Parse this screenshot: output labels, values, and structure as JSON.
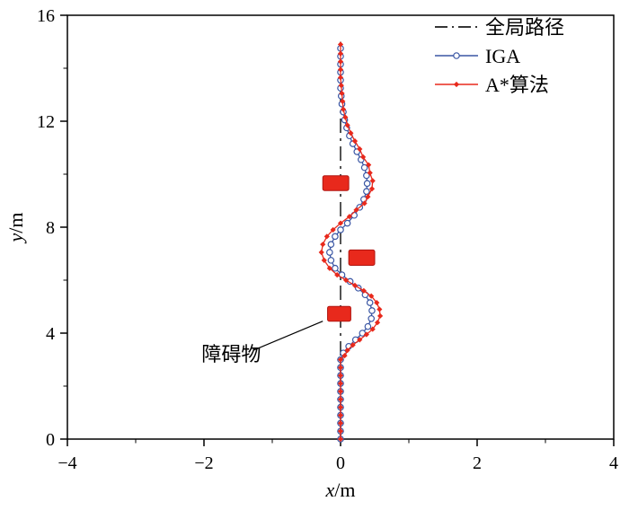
{
  "figure": {
    "background": "#ffffff",
    "frame_color": "#000000"
  },
  "chart_data": {
    "type": "line",
    "title": "",
    "xlabel": "x/m",
    "ylabel": "y/m",
    "xlim": [
      -4,
      4
    ],
    "ylim": [
      0,
      16
    ],
    "grid": false,
    "xticks": {
      "values": [
        -4,
        -2,
        0,
        2,
        4
      ],
      "labels": [
        "−4",
        "−2",
        "0",
        "2",
        "4"
      ]
    },
    "yticks": {
      "values": [
        0,
        4,
        8,
        12,
        16
      ],
      "labels": [
        "0",
        "4",
        "8",
        "12",
        "16"
      ]
    },
    "xminor": [
      -3,
      -1,
      1,
      3
    ],
    "yminor": [
      2,
      6,
      10,
      14
    ],
    "legend": {
      "position": "top-right",
      "items": [
        {
          "label": "全局路径",
          "series": "global"
        },
        {
          "label": "IGA",
          "series": "iga"
        },
        {
          "label": "A*算法",
          "series": "astar"
        }
      ]
    },
    "series": [
      {
        "id": "global",
        "name": "全局路径",
        "style": "dashdot",
        "color": "#1a1a1a",
        "width": 1.5,
        "marker": "none",
        "points": [
          [
            0,
            0
          ],
          [
            0,
            15.0
          ]
        ]
      },
      {
        "id": "iga",
        "name": "IGA",
        "style": "solid",
        "color": "#3a56a4",
        "width": 1.3,
        "marker": "circle",
        "points": [
          [
            0,
            0
          ],
          [
            0,
            0.3
          ],
          [
            0,
            0.6
          ],
          [
            0,
            0.9
          ],
          [
            0,
            1.2
          ],
          [
            0,
            1.5
          ],
          [
            0,
            1.8
          ],
          [
            0,
            2.1
          ],
          [
            0,
            2.4
          ],
          [
            0,
            2.7
          ],
          [
            0,
            3.0
          ],
          [
            0.04,
            3.25
          ],
          [
            0.12,
            3.5
          ],
          [
            0.22,
            3.75
          ],
          [
            0.32,
            4.0
          ],
          [
            0.4,
            4.25
          ],
          [
            0.45,
            4.55
          ],
          [
            0.46,
            4.85
          ],
          [
            0.43,
            5.15
          ],
          [
            0.36,
            5.45
          ],
          [
            0.26,
            5.7
          ],
          [
            0.14,
            5.95
          ],
          [
            0.02,
            6.2
          ],
          [
            -0.08,
            6.45
          ],
          [
            -0.14,
            6.75
          ],
          [
            -0.16,
            7.05
          ],
          [
            -0.14,
            7.35
          ],
          [
            -0.08,
            7.65
          ],
          [
            0.0,
            7.9
          ],
          [
            0.1,
            8.15
          ],
          [
            0.2,
            8.45
          ],
          [
            0.28,
            8.75
          ],
          [
            0.34,
            9.05
          ],
          [
            0.38,
            9.35
          ],
          [
            0.39,
            9.65
          ],
          [
            0.38,
            9.95
          ],
          [
            0.35,
            10.25
          ],
          [
            0.3,
            10.55
          ],
          [
            0.24,
            10.85
          ],
          [
            0.18,
            11.15
          ],
          [
            0.13,
            11.45
          ],
          [
            0.09,
            11.75
          ],
          [
            0.06,
            12.05
          ],
          [
            0.04,
            12.35
          ],
          [
            0.02,
            12.65
          ],
          [
            0.01,
            12.95
          ],
          [
            0,
            13.25
          ],
          [
            0,
            13.55
          ],
          [
            0,
            13.85
          ],
          [
            0,
            14.15
          ],
          [
            0,
            14.45
          ],
          [
            0,
            14.75
          ]
        ]
      },
      {
        "id": "astar",
        "name": "A*算法",
        "style": "solid",
        "color": "#e8291c",
        "width": 1.3,
        "marker": "diamond",
        "points": [
          [
            0,
            0
          ],
          [
            0,
            0.3
          ],
          [
            0,
            0.6
          ],
          [
            0,
            0.9
          ],
          [
            0,
            1.2
          ],
          [
            0,
            1.5
          ],
          [
            0,
            1.8
          ],
          [
            0,
            2.1
          ],
          [
            0,
            2.4
          ],
          [
            0,
            2.7
          ],
          [
            0,
            3.0
          ],
          [
            0.06,
            3.15
          ],
          [
            0.1,
            3.35
          ],
          [
            0.18,
            3.55
          ],
          [
            0.28,
            3.75
          ],
          [
            0.38,
            3.95
          ],
          [
            0.47,
            4.15
          ],
          [
            0.54,
            4.4
          ],
          [
            0.58,
            4.65
          ],
          [
            0.57,
            4.9
          ],
          [
            0.53,
            5.15
          ],
          [
            0.45,
            5.4
          ],
          [
            0.34,
            5.6
          ],
          [
            0.21,
            5.8
          ],
          [
            0.08,
            6.0
          ],
          [
            -0.05,
            6.2
          ],
          [
            -0.16,
            6.45
          ],
          [
            -0.24,
            6.75
          ],
          [
            -0.28,
            7.05
          ],
          [
            -0.26,
            7.35
          ],
          [
            -0.2,
            7.65
          ],
          [
            -0.11,
            7.9
          ],
          [
            0.0,
            8.15
          ],
          [
            0.13,
            8.4
          ],
          [
            0.23,
            8.65
          ],
          [
            0.35,
            8.9
          ],
          [
            0.4,
            9.15
          ],
          [
            0.46,
            9.45
          ],
          [
            0.47,
            9.75
          ],
          [
            0.43,
            10.05
          ],
          [
            0.41,
            10.35
          ],
          [
            0.33,
            10.65
          ],
          [
            0.28,
            10.95
          ],
          [
            0.21,
            11.25
          ],
          [
            0.15,
            11.55
          ],
          [
            0.1,
            11.85
          ],
          [
            0.07,
            12.15
          ],
          [
            0.04,
            12.45
          ],
          [
            0.03,
            12.75
          ],
          [
            0.02,
            13.05
          ],
          [
            0.01,
            13.35
          ],
          [
            0,
            13.65
          ],
          [
            0,
            13.95
          ],
          [
            0,
            14.25
          ],
          [
            0,
            14.55
          ],
          [
            0,
            14.9
          ]
        ]
      }
    ],
    "obstacles": {
      "color": "#e8291c",
      "border": "#b01510",
      "rects": [
        {
          "x": -0.26,
          "y": 9.38,
          "w": 0.38,
          "h": 0.56
        },
        {
          "x": 0.12,
          "y": 6.56,
          "w": 0.38,
          "h": 0.58
        },
        {
          "x": -0.19,
          "y": 4.45,
          "w": 0.34,
          "h": 0.56
        }
      ]
    },
    "annotation": {
      "text": "障碍物",
      "text_x": -1.6,
      "text_y": 2.95,
      "line": [
        [
          -1.28,
          3.35
        ],
        [
          -0.26,
          4.45
        ]
      ]
    }
  }
}
